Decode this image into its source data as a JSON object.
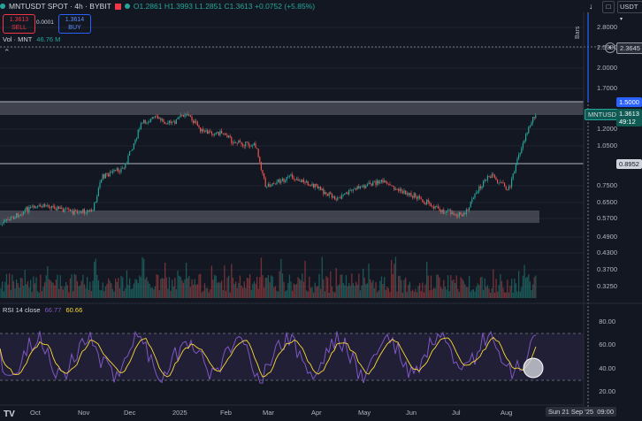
{
  "header": {
    "symbol": "MNTUSDT SPOT · 4h · BYBIT",
    "ohlc": {
      "o": "O1.2861",
      "h": "H1.3993",
      "l": "L1.2851",
      "c": "C1.3613",
      "chg": "+0.0752 (+5.85%)"
    }
  },
  "trade": {
    "sell_price": "1.3613",
    "sell_label": "SELL",
    "spread": "0.0001",
    "buy_price": "1.3614",
    "buy_label": "BUY"
  },
  "volume_legend": {
    "label": "Vol · MNT",
    "value": "46.76 M"
  },
  "rsi_legend": {
    "label": "RSI 14 close",
    "value1": "66.77",
    "value2": "60.66"
  },
  "currency": "USDT",
  "price_scale": [
    "2.8000",
    "2.5000",
    "2.0000",
    "1.7000",
    "1.2000",
    "1.0500",
    "0.7500",
    "0.6500",
    "0.5700",
    "0.4900",
    "0.4300",
    "0.3700",
    "0.3250"
  ],
  "price_tags": {
    "crosshair": "2.3645",
    "level_high": "1.5000",
    "last_symbol": "MNTUSDT",
    "last_price": "1.3613",
    "countdown": "49:12",
    "level_mid": "0.8952"
  },
  "measure_label": "Bars",
  "rsi_scale": [
    "80.00",
    "60.00",
    "40.00",
    "20.00"
  ],
  "time_axis": [
    "Oct",
    "Nov",
    "Dec",
    "2025",
    "Feb",
    "Mar",
    "Apr",
    "May",
    "Jun",
    "Jul",
    "Aug"
  ],
  "time_cursor": "Sun 21 Sep '25  09:00",
  "logo": "TV",
  "colors": {
    "up": "#26a69a",
    "down": "#ef5350",
    "rsi": "#7e57c2",
    "rsi_ma": "#fdd835",
    "bg": "#131722"
  },
  "icons": [
    "arrow-down-icon",
    "maximize-icon",
    "currency-dropdown",
    "collapse-icon",
    "plus-circle-icon"
  ]
}
